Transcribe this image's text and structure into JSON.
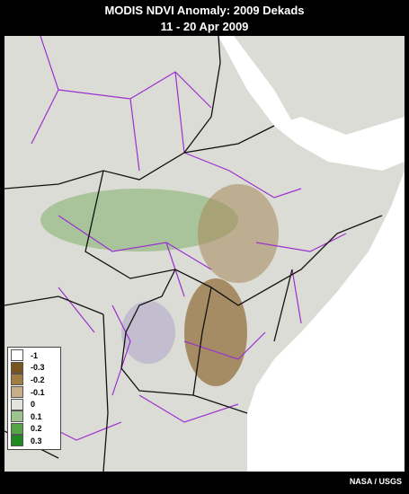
{
  "header": {
    "title": "MODIS NDVI Anomaly: 2009 Dekads",
    "subtitle": "11 - 20 Apr 2009"
  },
  "legend": {
    "items": [
      {
        "value": -1,
        "color": "#ffffff"
      },
      {
        "value": -0.3,
        "color": "#7a5420"
      },
      {
        "value": -0.2,
        "color": "#a07b42"
      },
      {
        "value": -0.1,
        "color": "#c9ad88"
      },
      {
        "value": 0,
        "color": "#e4e4de"
      },
      {
        "value": 0.1,
        "color": "#9cc48e"
      },
      {
        "value": 0.2,
        "color": "#55a344"
      },
      {
        "value": 0.3,
        "color": "#1f8a1f"
      }
    ]
  },
  "footer": {
    "credit": "NASA / USGS"
  }
}
